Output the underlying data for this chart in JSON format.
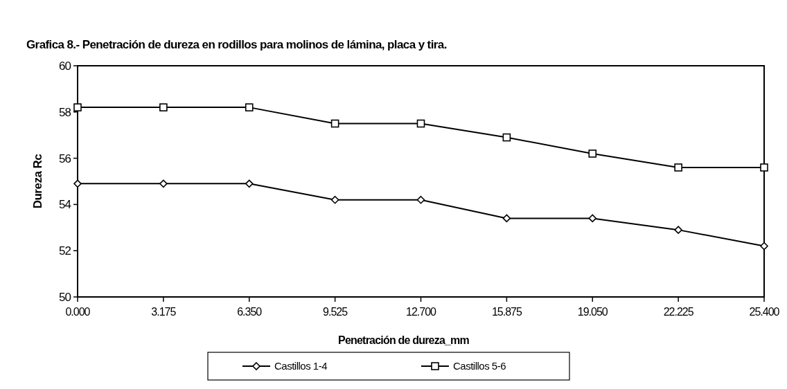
{
  "chart_data": {
    "type": "line",
    "title": "Grafica 8.- Penetración de dureza en rodillos para molinos de lámina, placa y tira.",
    "xlabel": "Penetración de dureza_mm",
    "ylabel": "Dureza  Rc",
    "x": [
      0,
      3.175,
      6.35,
      9.525,
      12.7,
      15.875,
      19.05,
      22.225,
      25.4
    ],
    "series": [
      {
        "name": "Castillos 1-4",
        "color": "#000000",
        "marker": "diamond",
        "values": [
          54.9,
          54.9,
          54.9,
          54.2,
          54.2,
          53.4,
          53.4,
          52.9,
          52.2
        ]
      },
      {
        "name": "Castillos 5-6",
        "color": "#000000",
        "marker": "square",
        "values": [
          58.2,
          58.2,
          58.2,
          57.5,
          57.5,
          56.9,
          56.2,
          55.6,
          55.6
        ]
      }
    ],
    "xlim": [
      0,
      25.4
    ],
    "xticks": [
      {
        "value": 0,
        "label": "0.000"
      },
      3.175,
      {
        "value": 6.35,
        "label": "6.350"
      },
      9.525,
      {
        "value": 12.7,
        "label": "12.700"
      },
      15.875,
      {
        "value": 19.05,
        "label": "19.050"
      },
      22.225,
      {
        "value": 25.4,
        "label": "25.400"
      }
    ],
    "ylim": [
      50,
      60
    ],
    "yticks": [
      50,
      52,
      54,
      56,
      58,
      60
    ],
    "grid": false,
    "legend": "bottom",
    "line_style": "solid"
  }
}
